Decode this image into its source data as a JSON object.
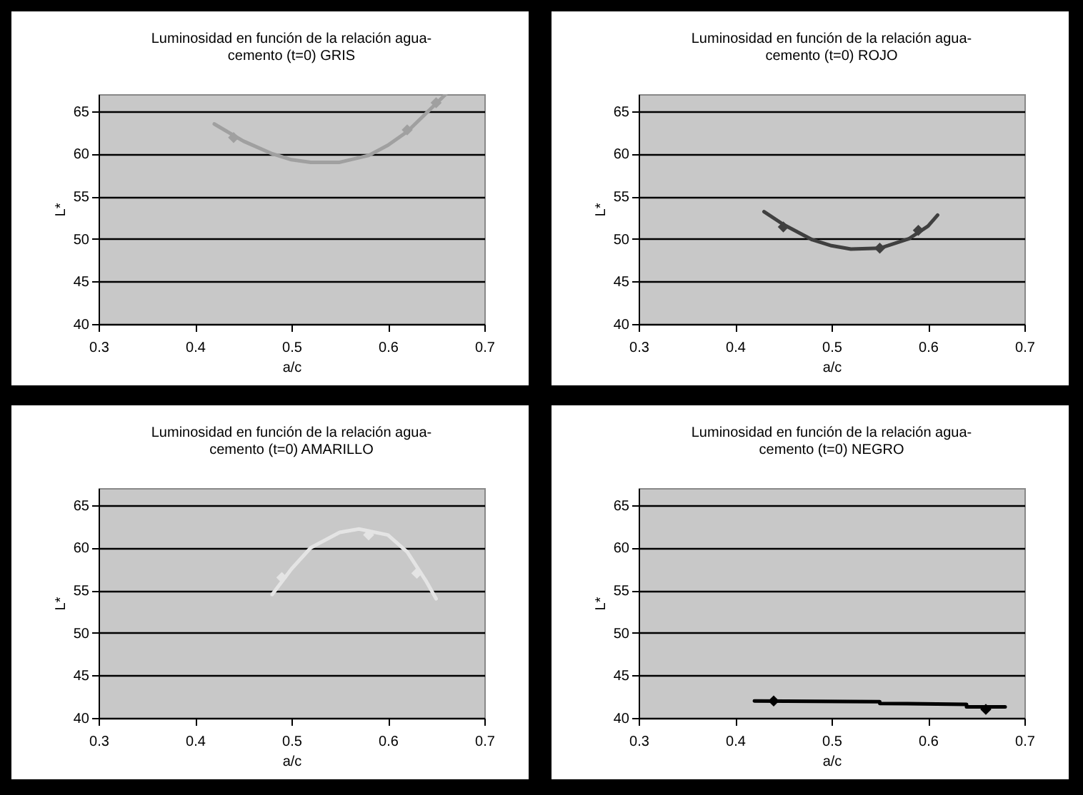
{
  "chart_data": [
    {
      "type": "line",
      "title": "Luminosidad en función de la relación agua-cemento (t=0) GRIS",
      "xlabel": "a/c",
      "ylabel": "L*",
      "xlim": [
        0.3,
        0.7
      ],
      "xticks": [
        0.3,
        0.4,
        0.5,
        0.6,
        0.7
      ],
      "ylim": [
        40,
        67
      ],
      "yticks": [
        40,
        45,
        50,
        55,
        60,
        65
      ],
      "grid": "y",
      "series": [
        {
          "type": "line",
          "marker": "none",
          "color": "#a0a0a0",
          "x": [
            0.42,
            0.45,
            0.48,
            0.5,
            0.52,
            0.55,
            0.58,
            0.6,
            0.62,
            0.64,
            0.66
          ],
          "values": [
            63.5,
            61.5,
            60,
            59.3,
            59,
            59,
            59.8,
            61,
            62.6,
            64.8,
            67
          ]
        },
        {
          "type": "scatter",
          "marker": "diamond",
          "color": "#a0a0a0",
          "x": [
            0.44,
            0.62,
            0.65
          ],
          "values": [
            61.9,
            62.8,
            66
          ]
        }
      ]
    },
    {
      "type": "line",
      "title": "Luminosidad en función de la relación agua-cemento (t=0) ROJO",
      "xlabel": "a/c",
      "ylabel": "L*",
      "xlim": [
        0.3,
        0.7
      ],
      "xticks": [
        0.3,
        0.4,
        0.5,
        0.6,
        0.7
      ],
      "ylim": [
        40,
        67
      ],
      "yticks": [
        40,
        45,
        50,
        55,
        60,
        65
      ],
      "grid": "y",
      "series": [
        {
          "type": "line",
          "marker": "none",
          "color": "#404040",
          "x": [
            0.43,
            0.45,
            0.48,
            0.5,
            0.52,
            0.55,
            0.58,
            0.6,
            0.61
          ],
          "values": [
            53.2,
            51.7,
            49.9,
            49.2,
            48.8,
            48.9,
            50,
            51.5,
            52.8
          ]
        },
        {
          "type": "scatter",
          "marker": "diamond",
          "color": "#404040",
          "x": [
            0.45,
            0.55,
            0.59
          ],
          "values": [
            51.4,
            48.9,
            51
          ]
        }
      ]
    },
    {
      "type": "line",
      "title": "Luminosidad en función de la relación agua-cemento (t=0) AMARILLO",
      "xlabel": "a/c",
      "ylabel": "L*",
      "xlim": [
        0.3,
        0.7
      ],
      "xticks": [
        0.3,
        0.4,
        0.5,
        0.6,
        0.7
      ],
      "ylim": [
        40,
        67
      ],
      "yticks": [
        40,
        45,
        50,
        55,
        60,
        65
      ],
      "grid": "y",
      "series": [
        {
          "type": "line",
          "marker": "none",
          "color": "#e4e4e4",
          "x": [
            0.48,
            0.5,
            0.52,
            0.55,
            0.57,
            0.6,
            0.62,
            0.64,
            0.65
          ],
          "values": [
            54.5,
            57.5,
            60,
            61.8,
            62.2,
            61.5,
            59.5,
            56,
            54
          ]
        },
        {
          "type": "scatter",
          "marker": "diamond",
          "color": "#e4e4e4",
          "x": [
            0.49,
            0.58,
            0.63
          ],
          "values": [
            56.5,
            61.5,
            57
          ]
        }
      ]
    },
    {
      "type": "line",
      "title": "Luminosidad en función de la relación agua-cemento (t=0) NEGRO",
      "xlabel": "a/c",
      "ylabel": "L*",
      "xlim": [
        0.3,
        0.7
      ],
      "xticks": [
        0.3,
        0.4,
        0.5,
        0.6,
        0.7
      ],
      "ylim": [
        40,
        67
      ],
      "yticks": [
        40,
        45,
        50,
        55,
        60,
        65
      ],
      "grid": "y",
      "series": [
        {
          "type": "line",
          "marker": "none",
          "color": "#000000",
          "x": [
            0.42,
            0.55,
            0.55,
            0.64,
            0.64,
            0.68
          ],
          "values": [
            42,
            41.9,
            41.7,
            41.6,
            41.3,
            41.3
          ]
        },
        {
          "type": "scatter",
          "marker": "diamond",
          "color": "#000000",
          "x": [
            0.44,
            0.66
          ],
          "values": [
            42,
            41
          ]
        }
      ]
    }
  ]
}
